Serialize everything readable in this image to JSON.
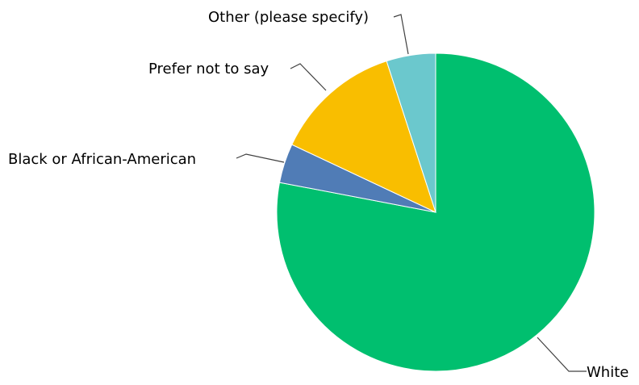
{
  "chart_data": {
    "type": "pie",
    "title": "",
    "start_angle_deg": 0,
    "direction": "clockwise",
    "slices": [
      {
        "label": "White",
        "value": 78,
        "color": "#00BF6F"
      },
      {
        "label": "Black or African-American",
        "value": 4,
        "color": "#507CB6"
      },
      {
        "label": "Prefer not to say",
        "value": 13,
        "color": "#F9BE00"
      },
      {
        "label": "Other (please specify)",
        "value": 5,
        "color": "#6BC8CD"
      }
    ],
    "legend": "none",
    "labels": "outside-with-leader-lines"
  }
}
